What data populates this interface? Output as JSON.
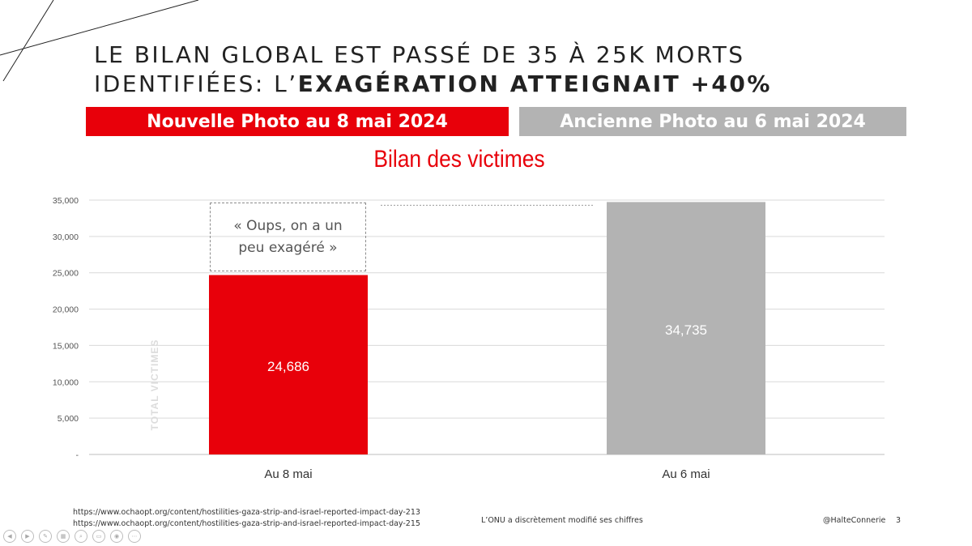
{
  "slide": {
    "title_line1": "LE BILAN GLOBAL EST PASSÉ DE 35 À 25K MORTS",
    "title_line2_regular": "IDENTIFIÉES: L’",
    "title_line2_bold": "EXAGÉRATION ATTEIGNAIT +40%"
  },
  "banners": {
    "new_label": "Nouvelle Photo au 8 mai 2024",
    "new_color": "#e8000a",
    "old_label": "Ancienne Photo au 6 mai 2024",
    "old_color": "#b3b3b3"
  },
  "annotation": {
    "text_line1": "« Oups, on a un",
    "text_line2": "peu exagéré »"
  },
  "chart_data": {
    "type": "bar",
    "title": "Bilan des victimes",
    "ylabel": "TOTAL VICTIMES",
    "xlabel": "",
    "categories": [
      "Au 8 mai",
      "Au 6 mai"
    ],
    "values": [
      24686,
      34735
    ],
    "value_labels": [
      "24,686",
      "34,735"
    ],
    "colors": [
      "#e8000a",
      "#b3b3b3"
    ],
    "ylim": [
      0,
      35000
    ],
    "yticks": [
      0,
      5000,
      10000,
      15000,
      20000,
      25000,
      30000,
      35000
    ],
    "ytick_labels": [
      "-",
      "5,000",
      "10,000",
      "15,000",
      "20,000",
      "25,000",
      "30,000",
      "35,000"
    ],
    "grid": true
  },
  "footer": {
    "source1": "https://www.ochaopt.org/content/hostilities-gaza-strip-and-israel-reported-impact-day-213",
    "source2": "https://www.ochaopt.org/content/hostilities-gaza-strip-and-israel-reported-impact-day-215",
    "caption": "L’ONU a discrètement modifié ses chiffres",
    "handle": "@HalteConnerie",
    "page_number": "3"
  },
  "player_controls": [
    "prev-icon",
    "next-icon",
    "pen-icon",
    "slides-icon",
    "zoom-icon",
    "subtitles-icon",
    "camera-icon",
    "more-icon"
  ]
}
